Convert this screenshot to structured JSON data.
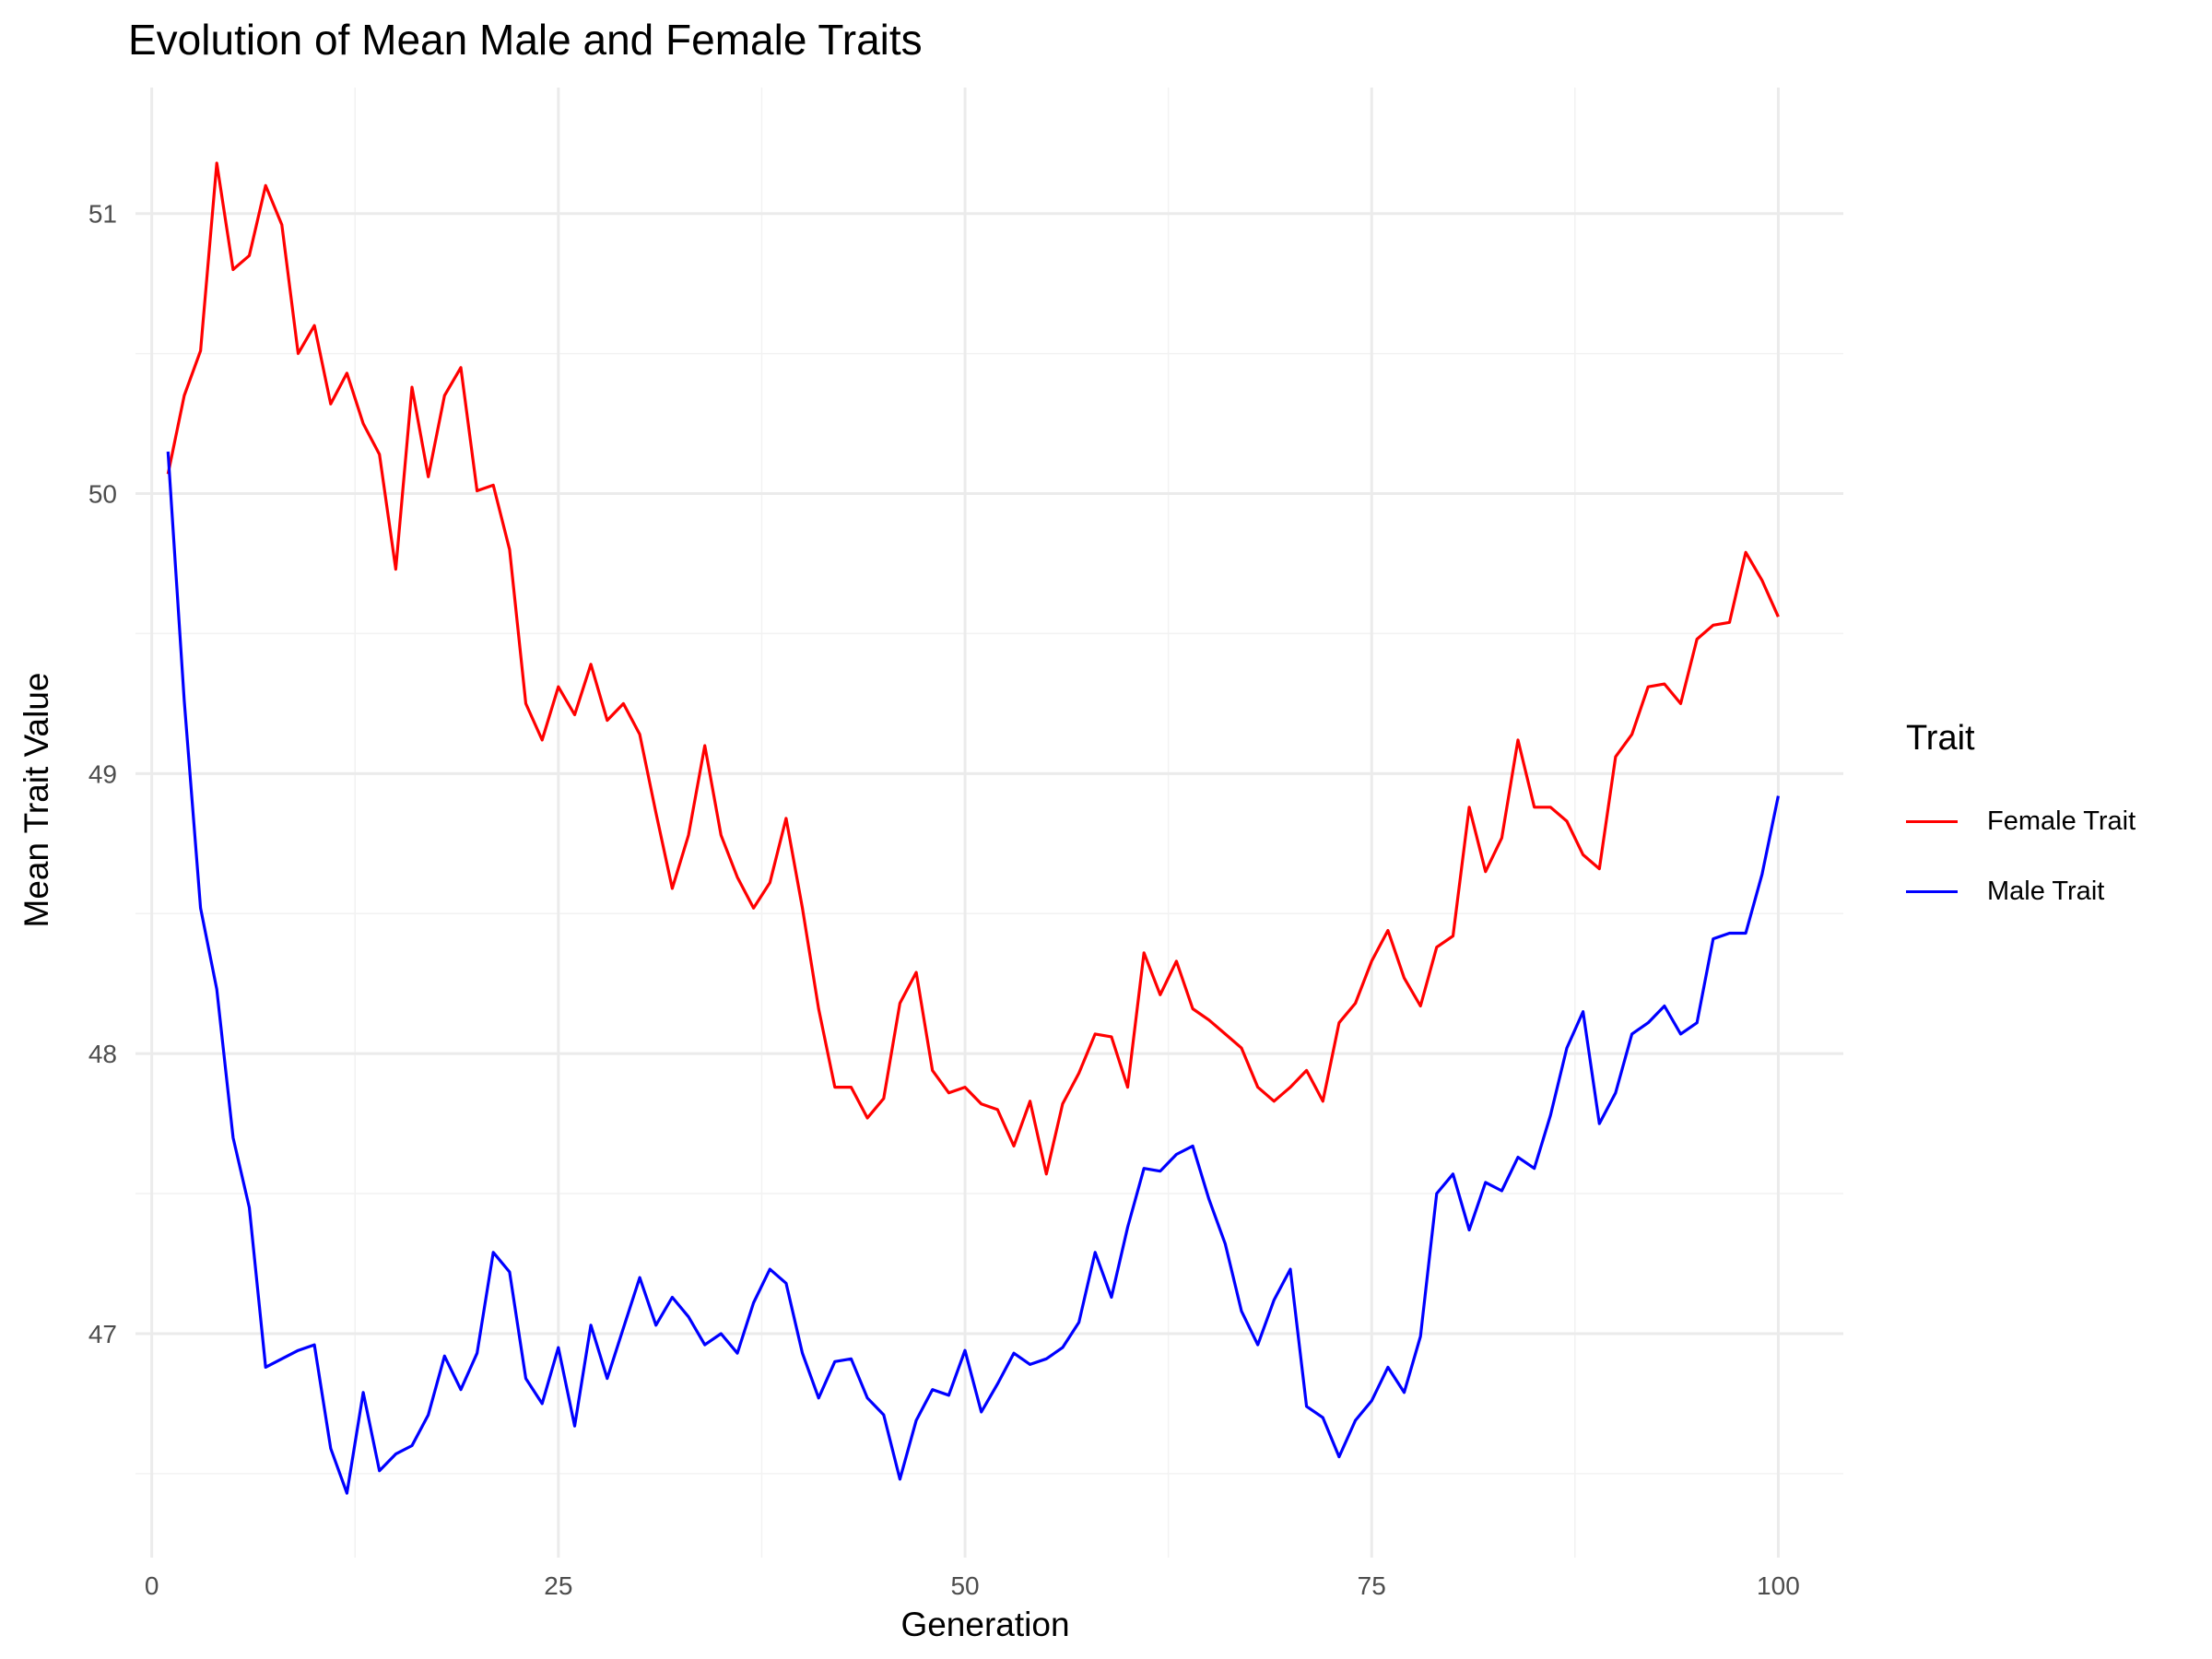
{
  "chart_data": {
    "type": "line",
    "title": "Evolution of Mean Male and Female Traits",
    "xlabel": "Generation",
    "ylabel": "Mean Trait Value",
    "xlim": [
      -1,
      104
    ],
    "ylim": [
      46.2,
      51.45
    ],
    "x_ticks": [
      0,
      25,
      50,
      75,
      100
    ],
    "y_ticks": [
      47,
      48,
      49,
      50,
      51
    ],
    "grid": true,
    "legend": {
      "title": "Trait",
      "position": "right"
    },
    "x": [
      1,
      2,
      3,
      4,
      5,
      6,
      7,
      8,
      9,
      10,
      11,
      12,
      13,
      14,
      15,
      16,
      17,
      18,
      19,
      20,
      21,
      22,
      23,
      24,
      25,
      26,
      27,
      28,
      29,
      30,
      31,
      32,
      33,
      34,
      35,
      36,
      37,
      38,
      39,
      40,
      41,
      42,
      43,
      44,
      45,
      46,
      47,
      48,
      49,
      50,
      51,
      52,
      53,
      54,
      55,
      56,
      57,
      58,
      59,
      60,
      61,
      62,
      63,
      64,
      65,
      66,
      67,
      68,
      69,
      70,
      71,
      72,
      73,
      74,
      75,
      76,
      77,
      78,
      79,
      80,
      81,
      82,
      83,
      84,
      85,
      86,
      87,
      88,
      89,
      90,
      91,
      92,
      93,
      94,
      95,
      96,
      97,
      98,
      99,
      100
    ],
    "series": [
      {
        "name": "Female Trait",
        "color": "#ff0000",
        "values": [
          50.07,
          50.35,
          50.51,
          51.18,
          50.8,
          50.85,
          51.1,
          50.96,
          50.5,
          50.6,
          50.32,
          50.43,
          50.25,
          50.14,
          49.73,
          50.38,
          50.06,
          50.35,
          50.45,
          50.01,
          50.03,
          49.8,
          49.25,
          49.12,
          49.31,
          49.21,
          49.39,
          49.19,
          49.25,
          49.14,
          48.86,
          48.59,
          48.78,
          49.1,
          48.78,
          48.63,
          48.52,
          48.61,
          48.84,
          48.52,
          48.16,
          47.88,
          47.88,
          47.77,
          47.84,
          48.18,
          48.29,
          47.94,
          47.86,
          47.88,
          47.82,
          47.8,
          47.67,
          47.83,
          47.57,
          47.82,
          47.93,
          48.07,
          48.06,
          47.88,
          48.36,
          48.21,
          48.33,
          48.16,
          48.12,
          48.07,
          48.02,
          47.88,
          47.83,
          47.88,
          47.94,
          47.83,
          48.11,
          48.18,
          48.33,
          48.44,
          48.27,
          48.17,
          48.38,
          48.42,
          48.88,
          48.65,
          48.77,
          49.12,
          48.88,
          48.88,
          48.83,
          48.71,
          48.66,
          49.06,
          49.14,
          49.31,
          49.32,
          49.25,
          49.48,
          49.53,
          49.54,
          49.79,
          49.69,
          49.56
        ]
      },
      {
        "name": "Male Trait",
        "color": "#0000ff",
        "values": [
          50.15,
          49.26,
          48.52,
          48.23,
          47.7,
          47.45,
          46.88,
          46.91,
          46.94,
          46.96,
          46.59,
          46.43,
          46.79,
          46.51,
          46.57,
          46.6,
          46.71,
          46.92,
          46.8,
          46.93,
          47.29,
          47.22,
          46.84,
          46.75,
          46.95,
          46.67,
          47.03,
          46.84,
          47.02,
          47.2,
          47.03,
          47.13,
          47.06,
          46.96,
          47.0,
          46.93,
          47.11,
          47.23,
          47.18,
          46.93,
          46.77,
          46.9,
          46.91,
          46.77,
          46.71,
          46.48,
          46.69,
          46.8,
          46.78,
          46.94,
          46.72,
          46.82,
          46.93,
          46.89,
          46.91,
          46.95,
          47.04,
          47.29,
          47.13,
          47.38,
          47.59,
          47.58,
          47.64,
          47.67,
          47.48,
          47.32,
          47.08,
          46.96,
          47.12,
          47.23,
          46.74,
          46.7,
          46.56,
          46.69,
          46.76,
          46.88,
          46.79,
          46.99,
          47.5,
          47.57,
          47.37,
          47.54,
          47.51,
          47.63,
          47.59,
          47.78,
          48.02,
          48.15,
          47.75,
          47.86,
          48.07,
          48.11,
          48.17,
          48.07,
          48.11,
          48.41,
          48.43,
          48.43,
          48.64,
          48.92
        ]
      }
    ]
  }
}
